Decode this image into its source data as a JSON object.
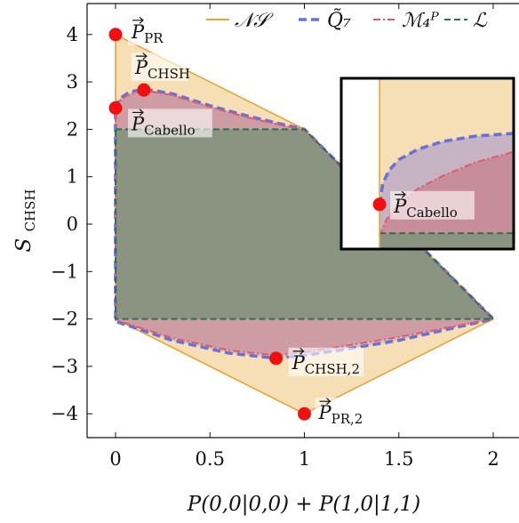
{
  "chart_data": {
    "type": "area",
    "xlabel": "P(0,0|0,0) + P(1,0|1,1)",
    "ylabel": "S_CHSH",
    "xlim": [
      -0.15,
      2.1
    ],
    "ylim": [
      -4.5,
      4.6
    ],
    "x_ticks": [
      0,
      0.5,
      1,
      1.5,
      2
    ],
    "x_tick_labels": [
      "0",
      "0.5",
      "1",
      "1.5",
      "2"
    ],
    "y_ticks": [
      -4,
      -3,
      -2,
      -1,
      0,
      1,
      2,
      3,
      4
    ],
    "y_tick_labels": [
      "−4",
      "−3",
      "−2",
      "−1",
      "0",
      "1",
      "2",
      "3",
      "4"
    ],
    "legend_position": "top",
    "colors": {
      "ns": "#E8A33C",
      "ns_fill": "#F6D9A8",
      "q7": "#6B72D6",
      "m4": "#E05A6A",
      "m4_fill": "#C8808C",
      "l": "#2E7050",
      "l_fill": "#8A9480"
    },
    "series": [
      {
        "name": "𝒩𝒮",
        "key": "ns",
        "style": "solid",
        "points": [
          [
            0,
            4
          ],
          [
            1,
            2
          ],
          [
            2,
            -2
          ],
          [
            1,
            -4
          ],
          [
            0,
            -2
          ],
          [
            0,
            4
          ]
        ]
      },
      {
        "name": "Q̃₇",
        "key": "q7",
        "style": "dashed",
        "points": [
          [
            0,
            2.45
          ],
          [
            0.02,
            2.64
          ],
          [
            0.06,
            2.75
          ],
          [
            0.1,
            2.81
          ],
          [
            0.15,
            2.83
          ],
          [
            0.2,
            2.82
          ],
          [
            0.3,
            2.75
          ],
          [
            0.5,
            2.5
          ],
          [
            0.7,
            2.28
          ],
          [
            0.9,
            2.09
          ],
          [
            1,
            2
          ],
          [
            2,
            -2
          ],
          [
            1.5,
            -2.45
          ],
          [
            1.2,
            -2.65
          ],
          [
            1,
            -2.77
          ],
          [
            0.85,
            -2.83
          ],
          [
            0.6,
            -2.72
          ],
          [
            0.3,
            -2.45
          ],
          [
            0,
            -2.05
          ],
          [
            0,
            2.45
          ]
        ]
      },
      {
        "name": "ℳ₄ᴾ",
        "key": "m4",
        "style": "dashdot",
        "points": [
          [
            0,
            2.42
          ],
          [
            0.02,
            2.6
          ],
          [
            0.06,
            2.71
          ],
          [
            0.1,
            2.77
          ],
          [
            0.15,
            2.8
          ],
          [
            0.2,
            2.79
          ],
          [
            0.3,
            2.72
          ],
          [
            0.5,
            2.47
          ],
          [
            0.7,
            2.25
          ],
          [
            0.9,
            2.07
          ],
          [
            1,
            2
          ],
          [
            2,
            -2
          ],
          [
            1.5,
            -2.38
          ],
          [
            1.2,
            -2.58
          ],
          [
            1,
            -2.7
          ],
          [
            0.85,
            -2.77
          ],
          [
            0.6,
            -2.66
          ],
          [
            0.3,
            -2.4
          ],
          [
            0,
            -2.02
          ],
          [
            0,
            2.42
          ]
        ]
      },
      {
        "name": "ℒ",
        "key": "l",
        "style": "dashed",
        "points": [
          [
            0,
            2
          ],
          [
            1,
            2
          ],
          [
            2,
            -2
          ],
          [
            0,
            -2
          ],
          [
            0,
            2
          ]
        ]
      }
    ],
    "annotations": [
      {
        "name": "P_PR",
        "label_base": "P",
        "label_sub": "PR",
        "x": 0,
        "y": 4
      },
      {
        "name": "P_CHSH",
        "label_base": "P",
        "label_sub": "CHSH",
        "x": 0.15,
        "y": 2.83
      },
      {
        "name": "P_Cabello",
        "label_base": "P",
        "label_sub": "Cabello",
        "x": 0,
        "y": 2.45
      },
      {
        "name": "P_CHSH2",
        "label_base": "P",
        "label_sub": "CHSH,2",
        "x": 0.85,
        "y": -2.83
      },
      {
        "name": "P_PR2",
        "label_base": "P",
        "label_sub": "PR,2",
        "x": 1,
        "y": -4
      }
    ],
    "inset": {
      "label_base": "P",
      "label_sub": "Cabello"
    }
  }
}
